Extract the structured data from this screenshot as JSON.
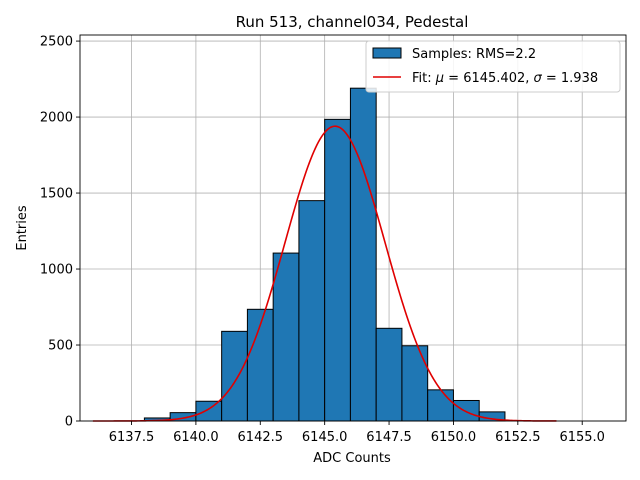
{
  "chart_data": {
    "type": "bar",
    "title": "Run 513, channel034, Pedestal",
    "xlabel": "ADC Counts",
    "ylabel": "Entries",
    "xlim": [
      6135.5,
      6156.7
    ],
    "ylim": [
      0,
      2540
    ],
    "grid": true,
    "legend_position": "top-right",
    "x_ticks": [
      6137.5,
      6140.0,
      6142.5,
      6145.0,
      6147.5,
      6150.0,
      6152.5,
      6155.0
    ],
    "x_tick_labels": [
      "6137.5",
      "6140.0",
      "6142.5",
      "6145.0",
      "6147.5",
      "6150.0",
      "6152.5",
      "6155.0"
    ],
    "y_ticks": [
      0,
      500,
      1000,
      1500,
      2000,
      2500
    ],
    "y_tick_labels": [
      "0",
      "500",
      "1000",
      "1500",
      "2000",
      "2500"
    ],
    "histogram": {
      "name": "Samples: RMS=2.2",
      "color": "#1f77b4",
      "bin_edges": [
        6138.0,
        6139.0,
        6140.0,
        6141.0,
        6142.0,
        6143.0,
        6144.0,
        6145.0,
        6146.0,
        6147.0,
        6148.0,
        6149.0,
        6150.0,
        6151.0,
        6152.0
      ],
      "counts": [
        20,
        55,
        130,
        590,
        735,
        1105,
        1450,
        1985,
        2190,
        610,
        495,
        205,
        135,
        60
      ]
    },
    "fit": {
      "name_prefix": "Fit: ",
      "mu_symbol": "μ",
      "mu_text": " = 6145.402, ",
      "sigma_symbol": "σ",
      "sigma_text": " = 1.938",
      "color": "#e00000",
      "mu": 6145.402,
      "sigma": 1.938,
      "amplitude": 1940,
      "x_range": [
        6136.0,
        6154.0
      ]
    }
  }
}
